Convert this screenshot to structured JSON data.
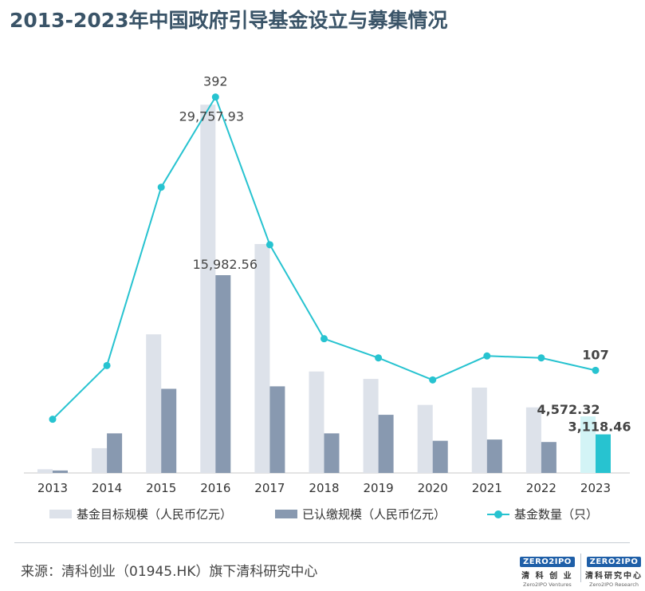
{
  "title": "2013-2023年中国政府引导基金设立与募集情况",
  "source": "来源：清科创业（01945.HK）旗下清科研究中心",
  "logos": [
    {
      "mark": "ZERO2IPO",
      "cn": "清 科 创 业",
      "en": "Zero2IPO Ventures"
    },
    {
      "mark": "ZERO2IPO",
      "cn": "清科研究中心",
      "en": "Zero2IPO Research"
    }
  ],
  "legend": {
    "target": "基金目标规模（人民币亿元）",
    "paid": "已认缴规模（人民币亿元）",
    "count": "基金数量（只）"
  },
  "colors": {
    "target": "#dde2ea",
    "paid": "#8899b0",
    "count_line": "#27c3d0",
    "target_2023": "#d3f4f6",
    "paid_2023": "#27c3d0"
  },
  "chart_data": {
    "type": "bar+line",
    "categories": [
      "2013",
      "2014",
      "2015",
      "2016",
      "2017",
      "2018",
      "2019",
      "2020",
      "2021",
      "2022",
      "2023"
    ],
    "series": [
      {
        "name": "基金目标规模（人民币亿元）",
        "type": "bar",
        "axis": "left",
        "values": [
          300,
          2000,
          11200,
          29757.93,
          18500,
          8200,
          7600,
          5500,
          6900,
          5300,
          4572.32
        ]
      },
      {
        "name": "已认缴规模（人民币亿元）",
        "type": "bar",
        "axis": "left",
        "values": [
          200,
          3200,
          6800,
          15982.56,
          7000,
          3200,
          4700,
          2600,
          2700,
          2500,
          3118.46
        ]
      },
      {
        "name": "基金数量（只）",
        "type": "line",
        "axis": "right",
        "values": [
          56,
          112,
          298,
          392,
          238,
          140,
          120,
          97,
          122,
          120,
          107
        ]
      }
    ],
    "data_labels": [
      {
        "series": "基金目标规模（人民币亿元）",
        "category": "2016",
        "text": "29,757.93"
      },
      {
        "series": "已认缴规模（人民币亿元）",
        "category": "2016",
        "text": "15,982.56"
      },
      {
        "series": "基金数量（只）",
        "category": "2016",
        "text": "392"
      },
      {
        "series": "基金目标规模（人民币亿元）",
        "category": "2023",
        "text": "4,572.32"
      },
      {
        "series": "已认缴规模（人民币亿元）",
        "category": "2023",
        "text": "3,118.46"
      },
      {
        "series": "基金数量（只）",
        "category": "2023",
        "text": "107"
      }
    ],
    "ylim_left": [
      0,
      31000
    ],
    "ylim_right": [
      0,
      420
    ],
    "grid": false,
    "legend_position": "bottom"
  }
}
